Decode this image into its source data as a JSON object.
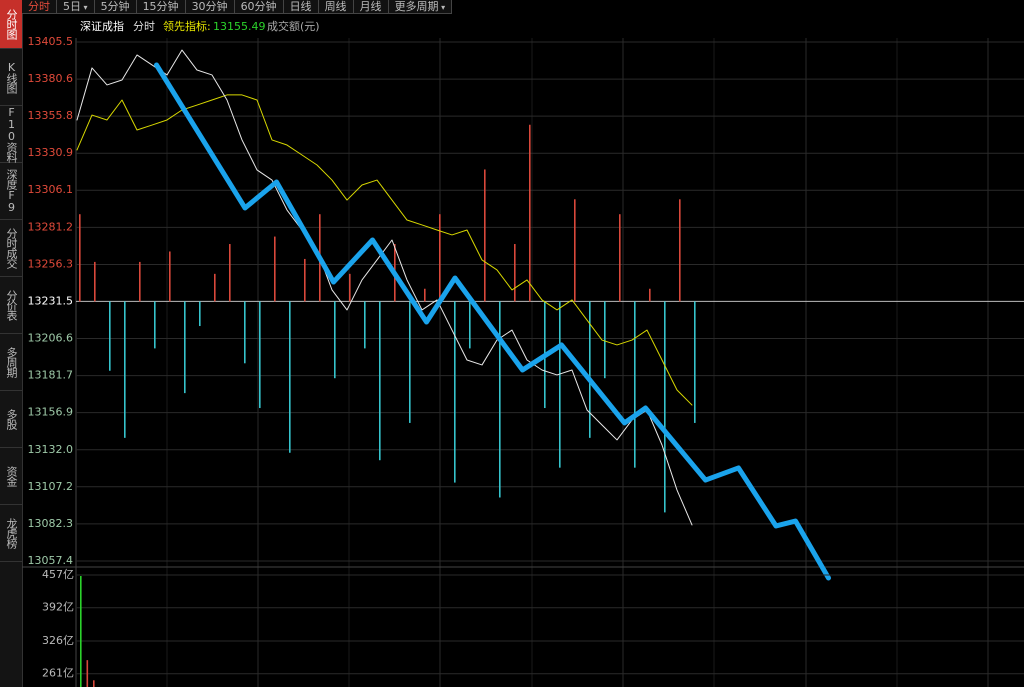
{
  "sidebar": [
    "分时图",
    "K线图",
    "F10资料",
    "深度F9",
    "分时成交",
    "分价表",
    "多周期",
    "多股",
    "资金",
    "龙虎榜"
  ],
  "tabs": [
    "分时",
    "5日",
    "5分钟",
    "15分钟",
    "30分钟",
    "60分钟",
    "日线",
    "周线",
    "月线",
    "更多周期"
  ],
  "legend": {
    "index_name": "深证成指",
    "mode": "分时",
    "leading_label": "领先指标:",
    "leading_value": 13155.49,
    "volume_label": "成交额(元)"
  },
  "price_chart": {
    "ylim": [
      13057.4,
      13405.5
    ],
    "base": 13231.5,
    "yticks": [
      13405.5,
      13380.6,
      13355.8,
      13330.9,
      13306.1,
      13281.2,
      13256.3,
      13231.5,
      13206.6,
      13181.7,
      13156.9,
      {
        "value": 13132,
        "label": "13132.0"
      },
      13107.2,
      13082.3,
      13057.4
    ],
    "price": {
      "color": "#e8e8e8",
      "values": [
        13353.2,
        13388.1,
        13376.7,
        13380.0,
        13396.8,
        13390.1,
        13383.4,
        13400.1,
        13386.7,
        13383.4,
        13366.6,
        13339.8,
        13319.7,
        13312.9,
        13292.8,
        13279.4,
        13266.0,
        13239.2,
        13225.8,
        13245.9,
        13259.3,
        13272.7,
        13245.9,
        13225.8,
        13232.5,
        13212.3,
        13192.2,
        13188.9,
        13205.6,
        13212.3,
        13192.2,
        13185.5,
        13182.2,
        13185.5,
        13158.7,
        13148.6,
        13138.6,
        13152.0,
        13158.7,
        13135.2,
        13105.0,
        13081.6
      ]
    },
    "leading": {
      "color": "#d8d800",
      "values": [
        13333.1,
        13356.5,
        13353.2,
        13366.6,
        13346.5,
        13349.8,
        13353.2,
        13359.9,
        13363.2,
        13366.6,
        13370.0,
        13370.0,
        13366.6,
        13339.8,
        13336.4,
        13329.7,
        13323.0,
        13312.9,
        13299.5,
        13309.6,
        13312.9,
        13299.5,
        13286.1,
        13282.8,
        13279.4,
        13276.1,
        13279.4,
        13259.3,
        13252.6,
        13239.2,
        13245.9,
        13232.5,
        13225.8,
        13232.5,
        13219.0,
        13205.6,
        13202.3,
        13205.6,
        13212.3,
        13192.2,
        13172.1,
        13162.0
      ]
    },
    "bars": {
      "up_color": "#d9483b",
      "down_color": "#36c3cc",
      "values": [
        13290,
        13258,
        13185,
        13140,
        13258,
        13200,
        13265,
        13170,
        13215,
        13250,
        13270,
        13190,
        13160,
        13275,
        13130,
        13260,
        13290,
        13180,
        13250,
        13200,
        13125,
        13270,
        13150,
        13240,
        13290,
        13110,
        13200,
        13320,
        13100,
        13270,
        13350,
        13160,
        13120,
        13300,
        13140,
        13180,
        13290,
        13120,
        13240,
        13090,
        13300,
        13150
      ]
    },
    "trend_line": {
      "color": "#1aa3ec",
      "x": [
        5.3,
        11.2,
        13.3,
        17.1,
        19.7,
        23.3,
        25.2,
        29.7,
        32.3,
        36.5,
        37.9,
        41.9,
        44.1,
        46.6,
        47.9,
        50.1
      ],
      "values": [
        13390.1,
        13294.2,
        13311.6,
        13244.5,
        13272.7,
        13217.7,
        13247.2,
        13185.5,
        13202.3,
        13150.0,
        13160.0,
        13111.7,
        13119.8,
        13080.9,
        13084.2,
        13046.0
      ]
    }
  },
  "volume_chart": {
    "ylim": [
      234.7,
      457
    ],
    "yticks": [
      {
        "value": 457,
        "label": "457亿"
      },
      {
        "value": 392,
        "label": "392亿"
      },
      {
        "value": 326,
        "label": "326亿"
      },
      {
        "value": 261,
        "label": "261亿"
      }
    ],
    "values": [
      455,
      288,
      248
    ],
    "colors": [
      "#2bd32b",
      "#d9483b",
      "#d9483b"
    ]
  }
}
